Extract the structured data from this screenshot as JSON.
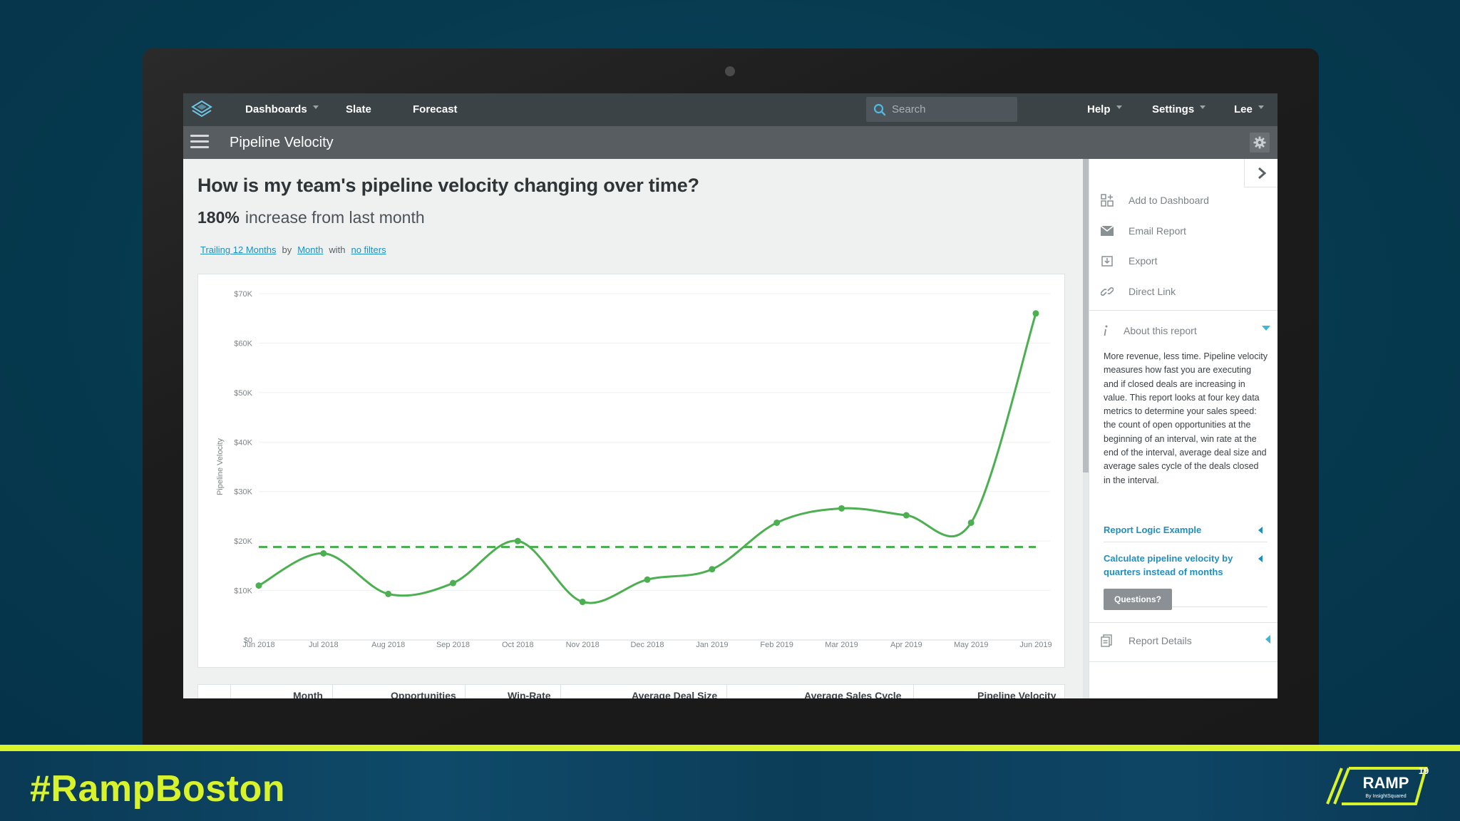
{
  "colors": {
    "accent_green": "#4caf50",
    "link_blue": "#1f8fc0",
    "banner_yellow": "#d8f32b"
  },
  "topnav": {
    "items": [
      {
        "label": "Dashboards",
        "has_caret": true
      },
      {
        "label": "Slate",
        "has_caret": false
      },
      {
        "label": "Forecast",
        "has_caret": false
      }
    ],
    "search_placeholder": "Search",
    "right_items": [
      {
        "label": "Help",
        "has_caret": true
      },
      {
        "label": "Settings",
        "has_caret": true
      },
      {
        "label": "Lee",
        "has_caret": true
      }
    ]
  },
  "titlebar": {
    "title": "Pipeline Velocity"
  },
  "main": {
    "question": "How is my team's pipeline velocity changing over time?",
    "stat_value": "180%",
    "stat_text": "increase from last month",
    "filters": {
      "range": "Trailing 12 Months",
      "by_word": "by",
      "period": "Month",
      "with_word": "with",
      "filter": "no filters"
    }
  },
  "chart_data": {
    "type": "line",
    "ylabel": "Pipeline Velocity",
    "x": [
      "Jun 2018",
      "Jul 2018",
      "Aug 2018",
      "Sep 2018",
      "Oct 2018",
      "Nov 2018",
      "Dec 2018",
      "Jan 2019",
      "Feb 2019",
      "Mar 2019",
      "Apr 2019",
      "May 2019",
      "Jun 2019"
    ],
    "series": [
      {
        "values": [
          11000,
          17500,
          9300,
          11500,
          20000,
          7700,
          12200,
          14300,
          23700,
          26600,
          25200,
          23700,
          66000
        ]
      }
    ],
    "reference_line": 18800,
    "ylim": [
      0,
      70000
    ],
    "yticks": [
      "$0",
      "$10K",
      "$20K",
      "$30K",
      "$40K",
      "$50K",
      "$60K",
      "$70K"
    ],
    "grid": true
  },
  "table": {
    "headers": [
      "Month",
      "Opportunities",
      "Win-Rate",
      "Average Deal Size",
      "Average Sales Cycle",
      "Pipeline Velocity"
    ]
  },
  "side": {
    "actions": [
      {
        "label": "Add to Dashboard",
        "icon": "add-dashboard-icon"
      },
      {
        "label": "Email Report",
        "icon": "email-icon"
      },
      {
        "label": "Export",
        "icon": "export-icon"
      },
      {
        "label": "Direct Link",
        "icon": "link-icon"
      }
    ],
    "about_title": "About this report",
    "about_text": "More revenue, less time. Pipeline velocity measures how fast you are executing and if closed deals are increasing in value. This report looks at four key data metrics to determine your sales speed: the count of open opportunities at the beginning of an interval, win rate at the end of the interval, average deal size and average sales cycle of the deals closed in the interval.",
    "link1": "Report Logic Example",
    "link2": "Calculate pipeline velocity by quarters instead of months",
    "questions_button": "Questions?",
    "details": "Report Details"
  },
  "banner": {
    "hashtag": "#RampBoston",
    "logo_text": "RAMP",
    "logo_sup": "19",
    "logo_sub": "By InsightSquared"
  }
}
